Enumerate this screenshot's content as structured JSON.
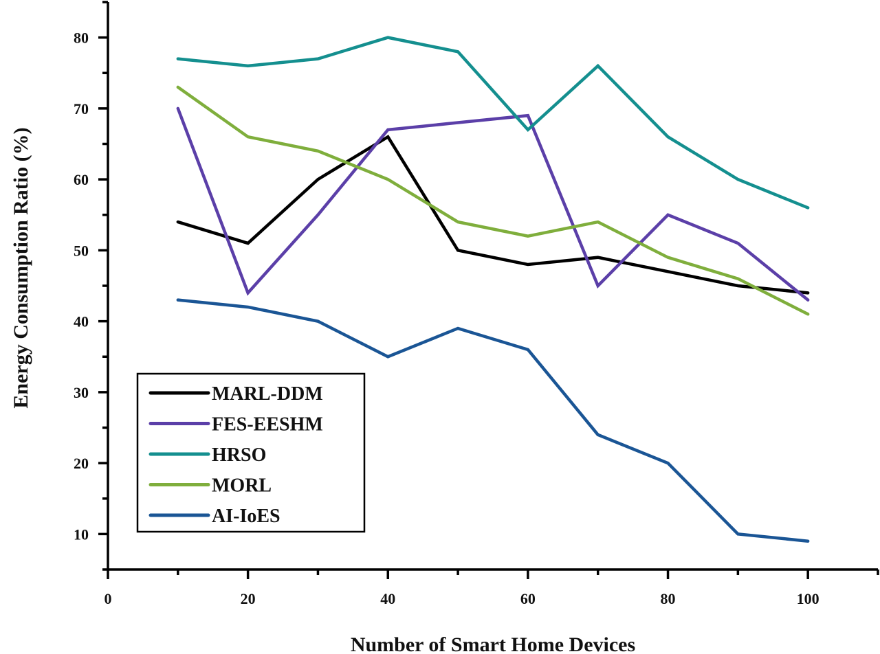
{
  "chart_data": {
    "type": "line",
    "title": "",
    "xlabel": "Number of Smart Home Devices",
    "ylabel": "Energy Consumption Ratio (%)",
    "xlim": [
      0,
      110
    ],
    "ylim": [
      5,
      85
    ],
    "x_major_ticks": [
      0,
      20,
      40,
      60,
      80,
      100
    ],
    "x_minor_ticks": [
      10,
      30,
      50,
      70,
      90,
      110
    ],
    "y_major_ticks": [
      10,
      20,
      30,
      40,
      50,
      60,
      70,
      80
    ],
    "y_minor_ticks": [
      5,
      15,
      25,
      35,
      45,
      55,
      65,
      75,
      85
    ],
    "x_tick_labels": [
      "0",
      "20",
      "40",
      "60",
      "80",
      "100"
    ],
    "y_tick_labels": [
      "10",
      "20",
      "30",
      "40",
      "50",
      "60",
      "70",
      "80"
    ],
    "grid": false,
    "legend_position": "bottom-left",
    "x": [
      10,
      20,
      30,
      40,
      50,
      60,
      70,
      80,
      90,
      100
    ],
    "series": [
      {
        "name": "MARL-DDM",
        "color": "#000000",
        "values": [
          54,
          51,
          60,
          66,
          50,
          48,
          49,
          47,
          45,
          44
        ]
      },
      {
        "name": "FES-EESHM",
        "color": "#5b3fa8",
        "values": [
          70,
          44,
          55,
          67,
          68,
          69,
          45,
          55,
          51,
          43
        ]
      },
      {
        "name": "HRSO",
        "color": "#148f8f",
        "values": [
          77,
          76,
          77,
          80,
          78,
          67,
          76,
          66,
          60,
          56
        ]
      },
      {
        "name": "MORL",
        "color": "#7fae3c",
        "values": [
          73,
          66,
          64,
          60,
          54,
          52,
          54,
          49,
          46,
          41
        ]
      },
      {
        "name": "AI-IoES",
        "color": "#1a5595",
        "values": [
          43,
          42,
          40,
          35,
          39,
          36,
          24,
          20,
          10,
          9
        ]
      }
    ]
  }
}
